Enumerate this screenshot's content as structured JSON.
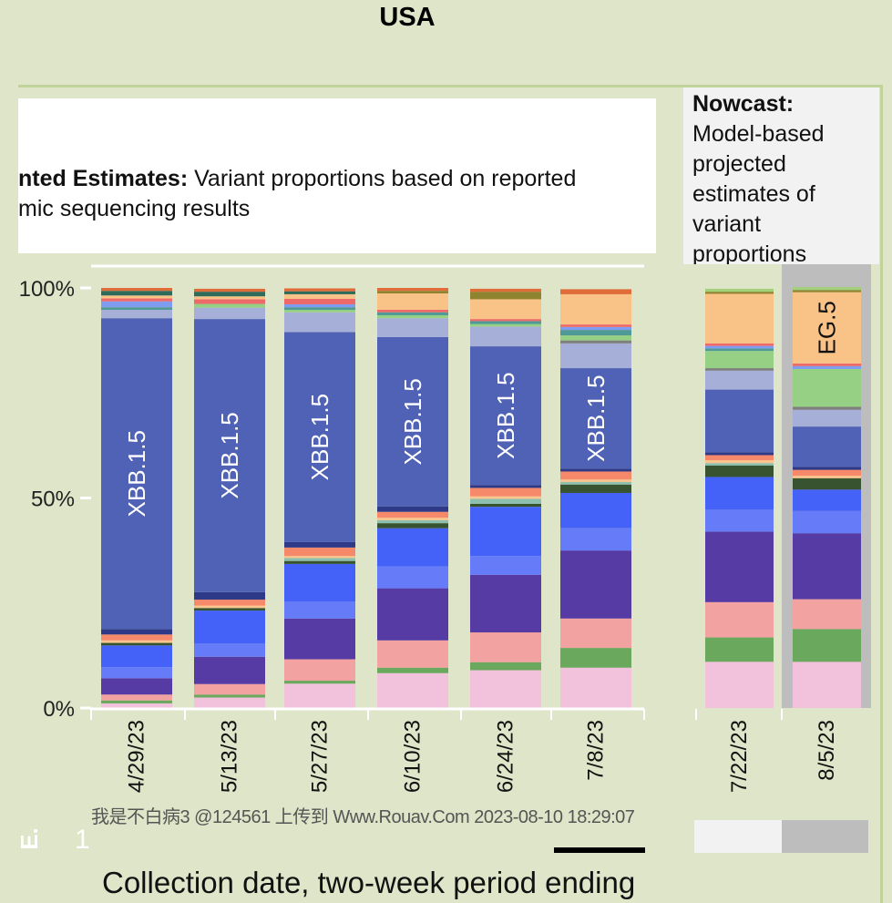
{
  "title": "USA",
  "observed_panel": {
    "bold": "nted Estimates:",
    "text_line1": " Variant proportions based on reported",
    "text_line2": "mic sequencing results"
  },
  "nowcast_panel": {
    "bold": "Nowcast:",
    "text": "Model-based projected estimates of variant proportions"
  },
  "watermark": "我是不白病3 @124561 上传到 Www.Rouav.Com 2023-08-10 18:29:07",
  "footer_marks": {
    "e": "E.",
    "one": "1"
  },
  "chart_data": {
    "type": "bar",
    "stacked": true,
    "title": "USA",
    "xlabel": "Collection date, two-week period ending",
    "ylabel": "",
    "ylim": [
      0,
      100
    ],
    "yticks": [
      {
        "value": 100,
        "label": "100%"
      },
      {
        "value": 50,
        "label": "50%"
      },
      {
        "value": 0,
        "label": "0%"
      }
    ],
    "categories": [
      "4/29/23",
      "5/13/23",
      "5/27/23",
      "6/10/23",
      "6/24/23",
      "7/8/23",
      "7/22/23",
      "8/5/23"
    ],
    "nowcast_categories": [
      "7/22/23",
      "8/5/23"
    ],
    "highlighted_category": "8/5/23",
    "grid": false,
    "legend": "none",
    "series": [
      {
        "color": "#F2C1DC",
        "values": [
          1.1,
          2.5,
          5.8,
          8.3,
          9.0,
          9.6,
          11.0,
          11.0
        ]
      },
      {
        "color": "#6AA85E",
        "values": [
          0.7,
          0.7,
          0.7,
          1.3,
          1.9,
          4.7,
          5.8,
          7.8
        ]
      },
      {
        "color": "#F2A2A0",
        "values": [
          1.4,
          2.5,
          5.1,
          6.5,
          7.1,
          7.0,
          8.4,
          7.1
        ]
      },
      {
        "color": "#563BA5",
        "values": [
          3.9,
          6.5,
          9.7,
          12.4,
          13.7,
          16.2,
          16.8,
          15.7
        ]
      },
      {
        "color": "#667BF8",
        "values": [
          2.6,
          3.2,
          4.0,
          5.2,
          4.5,
          5.3,
          5.2,
          5.3
        ]
      },
      {
        "color": "#4562F8",
        "values": [
          5.2,
          7.8,
          9.0,
          9.1,
          11.7,
          8.4,
          7.8,
          5.1
        ]
      },
      {
        "color": "#37532F",
        "values": [
          0.6,
          0.6,
          0.7,
          1.2,
          0.7,
          2.0,
          2.7,
          2.7
        ]
      },
      {
        "color": "#8CBFAE",
        "values": [
          0,
          0,
          0.7,
          0.7,
          1.2,
          0.6,
          0.6,
          0
        ]
      },
      {
        "color": "#F9C48D",
        "values": [
          0.6,
          0.6,
          0.5,
          0.6,
          0.6,
          0.6,
          0.7,
          0.6
        ]
      },
      {
        "color": "#F5896A",
        "values": [
          1.4,
          1.4,
          2.0,
          1.4,
          2.0,
          1.9,
          1.2,
          1.4
        ]
      },
      {
        "color": "#2E3A88",
        "values": [
          1.3,
          1.8,
          1.3,
          1.3,
          0.7,
          0.7,
          0.7,
          0.7
        ]
      },
      {
        "name": "XBB.1.5",
        "color": "#5062B5",
        "label_color": "#FFFFFF",
        "labeled_bars": [
          0,
          1,
          2,
          3,
          4,
          5
        ],
        "values": [
          74,
          65,
          50,
          40.3,
          33,
          23.9,
          14.9,
          9.6
        ]
      },
      {
        "color": "#A6AFD8",
        "values": [
          2.0,
          2.7,
          4.7,
          4.5,
          4.7,
          5.9,
          4.5,
          4.0
        ]
      },
      {
        "color": "#7F7F7F",
        "values": [
          0,
          0,
          0,
          0,
          0,
          0.7,
          0.6,
          0.7
        ]
      },
      {
        "color": "#96D084",
        "values": [
          0,
          0.9,
          0.6,
          0.7,
          0.6,
          1.2,
          4.1,
          9.0
        ]
      },
      {
        "color": "#4F9A96",
        "values": [
          0.6,
          0,
          0.6,
          0.7,
          0.7,
          1.3,
          0.6,
          0
        ]
      },
      {
        "color": "#7F9CF0",
        "values": [
          1.4,
          0,
          0.7,
          0,
          0,
          0.7,
          0.6,
          0.7
        ]
      },
      {
        "color": "#EE6A6A",
        "values": [
          0.7,
          1.1,
          1.3,
          0.6,
          0.5,
          0.6,
          0.6,
          0.6
        ]
      },
      {
        "name": "EG.5",
        "color": "#F9C387",
        "label_color": "#111111",
        "labeled_bars": [
          7
        ],
        "values": [
          0.7,
          0.7,
          1.1,
          3.9,
          4.7,
          7.2,
          11.8,
          17.0
        ]
      },
      {
        "color": "#2F6B5B",
        "values": [
          1.1,
          1.1,
          0.7,
          0,
          0,
          0,
          0,
          0
        ]
      },
      {
        "color": "#8E8430",
        "values": [
          0,
          0,
          0,
          0.6,
          1.8,
          0,
          0.5,
          0.5
        ]
      },
      {
        "color": "#E06C3A",
        "values": [
          0.7,
          0.7,
          0.7,
          0.7,
          0.7,
          1.2,
          0,
          0
        ]
      },
      {
        "color": "#A3D07A",
        "values": [
          0,
          0,
          0,
          0,
          0,
          0,
          0.7,
          0.7
        ]
      }
    ]
  }
}
